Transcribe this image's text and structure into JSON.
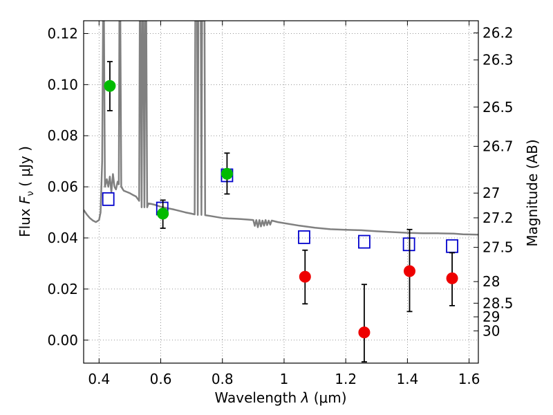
{
  "chart_data": {
    "type": "scatter",
    "title": "",
    "xlabel_prefix": "Wavelength",
    "xlabel_symbol": "λ",
    "xlabel_unit": "(μm)",
    "ylabel_prefix": "Flux",
    "ylabel_symbol": "F",
    "ylabel_subscript": "ν",
    "ylabel_unit": "( μJy )",
    "y2label": "Magnitude (AB)",
    "xlim": [
      0.35,
      1.63
    ],
    "ylim": [
      -0.009,
      0.125
    ],
    "grid": true,
    "x_ticks": [
      {
        "value": 0.4,
        "label": "0.4"
      },
      {
        "value": 0.6,
        "label": "0.6"
      },
      {
        "value": 0.8,
        "label": "0.8"
      },
      {
        "value": 1.0,
        "label": "1"
      },
      {
        "value": 1.2,
        "label": "1.2"
      },
      {
        "value": 1.4,
        "label": "1.4"
      },
      {
        "value": 1.6,
        "label": "1.6"
      }
    ],
    "y_ticks": [
      {
        "value": 0.0,
        "label": "0.00"
      },
      {
        "value": 0.02,
        "label": "0.02"
      },
      {
        "value": 0.04,
        "label": "0.04"
      },
      {
        "value": 0.06,
        "label": "0.06"
      },
      {
        "value": 0.08,
        "label": "0.08"
      },
      {
        "value": 0.1,
        "label": "0.10"
      },
      {
        "value": 0.12,
        "label": "0.12"
      }
    ],
    "y2_ticks": [
      {
        "mag": 26.2,
        "label": "26.2"
      },
      {
        "mag": 26.3,
        "label": "26.3"
      },
      {
        "mag": 26.5,
        "label": "26.5"
      },
      {
        "mag": 26.7,
        "label": "26.7"
      },
      {
        "mag": 27,
        "label": "27"
      },
      {
        "mag": 27.2,
        "label": "27.2"
      },
      {
        "mag": 27.5,
        "label": "27.5"
      },
      {
        "mag": 28,
        "label": "28"
      },
      {
        "mag": 28.5,
        "label": "28.5"
      },
      {
        "mag": 29,
        "label": "29"
      },
      {
        "mag": 30,
        "label": "30"
      }
    ],
    "series": [
      {
        "kind": "line",
        "color": "#808080",
        "points": [
          [
            0.35,
            0.051
          ],
          [
            0.36,
            0.0492
          ],
          [
            0.37,
            0.0478
          ],
          [
            0.38,
            0.0468
          ],
          [
            0.39,
            0.0462
          ],
          [
            0.4,
            0.047
          ],
          [
            0.405,
            0.05
          ],
          [
            0.41,
            0.07
          ],
          [
            0.413,
            0.125
          ],
          [
            0.416,
            0.125
          ],
          [
            0.419,
            0.06
          ],
          [
            0.425,
            0.063
          ],
          [
            0.43,
            0.06
          ],
          [
            0.435,
            0.064
          ],
          [
            0.44,
            0.058
          ],
          [
            0.445,
            0.065
          ],
          [
            0.45,
            0.06
          ],
          [
            0.455,
            0.059
          ],
          [
            0.46,
            0.062
          ],
          [
            0.464,
            0.061
          ],
          [
            0.466,
            0.125
          ],
          [
            0.469,
            0.125
          ],
          [
            0.472,
            0.06
          ],
          [
            0.48,
            0.0585
          ],
          [
            0.49,
            0.058
          ],
          [
            0.5,
            0.0575
          ],
          [
            0.51,
            0.0568
          ],
          [
            0.52,
            0.0562
          ],
          [
            0.53,
            0.0545
          ],
          [
            0.532,
            0.125
          ],
          [
            0.535,
            0.125
          ],
          [
            0.538,
            0.052
          ],
          [
            0.541,
            0.125
          ],
          [
            0.544,
            0.125
          ],
          [
            0.547,
            0.052
          ],
          [
            0.55,
            0.125
          ],
          [
            0.553,
            0.125
          ],
          [
            0.556,
            0.052
          ],
          [
            0.56,
            0.0535
          ],
          [
            0.57,
            0.0533
          ],
          [
            0.58,
            0.053
          ],
          [
            0.59,
            0.0526
          ],
          [
            0.6,
            0.0522
          ],
          [
            0.62,
            0.0517
          ],
          [
            0.64,
            0.0512
          ],
          [
            0.66,
            0.0506
          ],
          [
            0.68,
            0.05
          ],
          [
            0.7,
            0.0495
          ],
          [
            0.71,
            0.0492
          ],
          [
            0.712,
            0.125
          ],
          [
            0.718,
            0.125
          ],
          [
            0.72,
            0.049
          ],
          [
            0.722,
            0.125
          ],
          [
            0.73,
            0.125
          ],
          [
            0.732,
            0.049
          ],
          [
            0.734,
            0.125
          ],
          [
            0.742,
            0.125
          ],
          [
            0.744,
            0.0489
          ],
          [
            0.76,
            0.0486
          ],
          [
            0.78,
            0.0482
          ],
          [
            0.8,
            0.0478
          ],
          [
            0.82,
            0.0476
          ],
          [
            0.84,
            0.0475
          ],
          [
            0.86,
            0.0474
          ],
          [
            0.88,
            0.0472
          ],
          [
            0.9,
            0.047
          ],
          [
            0.905,
            0.0447
          ],
          [
            0.91,
            0.047
          ],
          [
            0.915,
            0.0442
          ],
          [
            0.92,
            0.047
          ],
          [
            0.925,
            0.0445
          ],
          [
            0.93,
            0.0468
          ],
          [
            0.935,
            0.0448
          ],
          [
            0.94,
            0.047
          ],
          [
            0.945,
            0.045
          ],
          [
            0.95,
            0.0468
          ],
          [
            0.955,
            0.0452
          ],
          [
            0.96,
            0.0468
          ],
          [
            0.98,
            0.0462
          ],
          [
            1.0,
            0.0458
          ],
          [
            1.05,
            0.0448
          ],
          [
            1.1,
            0.044
          ],
          [
            1.15,
            0.0434
          ],
          [
            1.2,
            0.0432
          ],
          [
            1.25,
            0.043
          ],
          [
            1.3,
            0.0426
          ],
          [
            1.35,
            0.0423
          ],
          [
            1.4,
            0.042
          ],
          [
            1.45,
            0.0418
          ],
          [
            1.5,
            0.0418
          ],
          [
            1.55,
            0.0417
          ],
          [
            1.58,
            0.0414
          ],
          [
            1.63,
            0.0413
          ]
        ]
      },
      {
        "kind": "open-square",
        "color": "#0000cc",
        "points": [
          [
            0.43,
            0.0552
          ],
          [
            0.605,
            0.0515
          ],
          [
            0.815,
            0.0645
          ],
          [
            1.065,
            0.0403
          ],
          [
            1.26,
            0.0385
          ],
          [
            1.405,
            0.0375
          ],
          [
            1.545,
            0.0368
          ]
        ]
      },
      {
        "kind": "filled-circle",
        "color": "#00bb00",
        "points": [
          {
            "x": 0.435,
            "y": 0.0995,
            "ylo": 0.0898,
            "yhi": 0.109
          },
          {
            "x": 0.607,
            "y": 0.0495,
            "ylo": 0.0438,
            "yhi": 0.0548
          },
          {
            "x": 0.815,
            "y": 0.0651,
            "ylo": 0.0572,
            "yhi": 0.0732
          }
        ]
      },
      {
        "kind": "filled-circle",
        "color": "#ee0000",
        "points": [
          {
            "x": 1.068,
            "y": 0.0248,
            "ylo": 0.0142,
            "yhi": 0.0352
          },
          {
            "x": 1.26,
            "y": 0.003,
            "ylo": -0.0085,
            "yhi": 0.0218
          },
          {
            "x": 1.407,
            "y": 0.027,
            "ylo": 0.0112,
            "yhi": 0.0433
          },
          {
            "x": 1.545,
            "y": 0.0242,
            "ylo": 0.0135,
            "yhi": 0.0342
          }
        ]
      }
    ]
  }
}
